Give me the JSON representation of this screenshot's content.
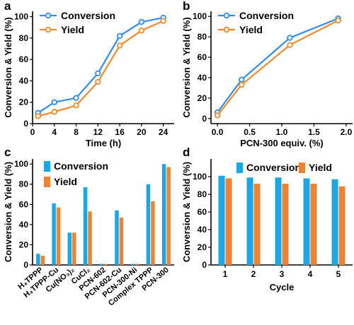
{
  "colors": {
    "conversion": "#2f8cf0",
    "yield": "#f5892a",
    "conversion_bar": "#1aa7e6",
    "yield_bar": "#ee8334"
  },
  "chart_data": [
    {
      "panel": "a",
      "type": "line",
      "xlabel": "Time (h)",
      "ylabel": "Conversion & Yield (%)",
      "xlim": [
        0,
        26
      ],
      "ylim": [
        0,
        105
      ],
      "xticks": [
        0,
        4,
        8,
        12,
        16,
        20,
        24
      ],
      "yticks": [
        0,
        20,
        40,
        60,
        80,
        100
      ],
      "legend": "top-left",
      "series": [
        {
          "name": "Conversion",
          "x": [
            1,
            4,
            8,
            12,
            16,
            20,
            24
          ],
          "values": [
            10,
            20,
            24,
            47,
            82,
            95,
            99
          ]
        },
        {
          "name": "Yield",
          "x": [
            1,
            4,
            8,
            12,
            16,
            20,
            24
          ],
          "values": [
            7,
            11,
            17,
            39,
            73,
            87,
            96
          ]
        }
      ]
    },
    {
      "panel": "b",
      "type": "line",
      "xlabel": "PCN-300 equiv. (%)",
      "ylabel": "Conversion & Yield (%)",
      "xlim": [
        -0.1,
        2.1
      ],
      "ylim": [
        -5,
        105
      ],
      "xticks": [
        0.0,
        0.5,
        1.0,
        1.5,
        2.0
      ],
      "xticklabels": [
        "0.0",
        "0.5",
        "1.0",
        "1.5",
        "2.0"
      ],
      "yticks": [
        0,
        20,
        40,
        60,
        80,
        100
      ],
      "legend": "top-left",
      "series": [
        {
          "name": "Conversion",
          "x": [
            0.0,
            0.375,
            1.125,
            1.875
          ],
          "values": [
            6,
            38,
            79,
            98
          ]
        },
        {
          "name": "Yield",
          "x": [
            0.0,
            0.375,
            1.125,
            1.875
          ],
          "values": [
            3,
            33,
            72,
            96
          ]
        }
      ]
    },
    {
      "panel": "c",
      "type": "bar",
      "ylabel": "Conversion & Yield (%)",
      "ylim": [
        0,
        105
      ],
      "yticks": [
        0,
        20,
        40,
        60,
        80,
        100
      ],
      "legend": "top-left",
      "categories": [
        "H₄TPPP",
        "H₄TPPP-Cu",
        "Cu(NO₃)₂",
        "CuCl₂",
        "PCN-602",
        "PCN-602-Cu",
        "PCN-300-Ni",
        "Complex TPPP",
        "PCN-300"
      ],
      "series": [
        {
          "name": "Conversion",
          "values": [
            11,
            61,
            32,
            77,
            1,
            54,
            1,
            80,
            100
          ]
        },
        {
          "name": "Yield",
          "values": [
            9,
            57,
            32,
            53,
            1,
            47,
            1,
            63,
            97
          ]
        }
      ]
    },
    {
      "panel": "d",
      "type": "bar",
      "xlabel": "Cycle",
      "ylabel": "Conversion & Yield (%)",
      "ylim": [
        0,
        120
      ],
      "yticks": [
        0,
        20,
        40,
        60,
        80,
        100
      ],
      "legend": "top-right",
      "categories": [
        "1",
        "2",
        "3",
        "4",
        "5"
      ],
      "series": [
        {
          "name": "Conversion",
          "values": [
            101,
            99,
            99,
            98,
            97
          ]
        },
        {
          "name": "Yield",
          "values": [
            98,
            92,
            92,
            92,
            89
          ]
        }
      ]
    }
  ]
}
